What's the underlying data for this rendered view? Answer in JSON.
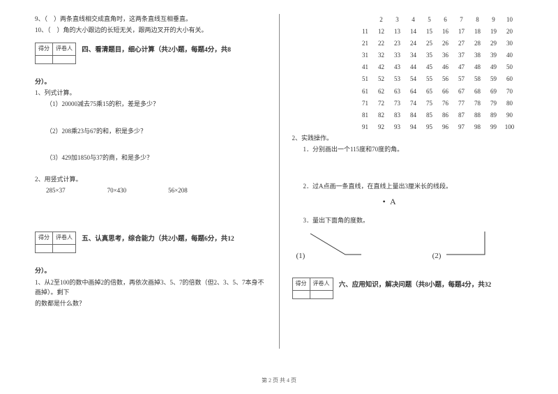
{
  "leftTop": {
    "q9": "9、（　）两条直线相交成直角时，这两条直线互相垂直。",
    "q10": "10、（　）角的大小跟边的长短无关，跟两边叉开的大小有关。"
  },
  "score": {
    "h1": "得分",
    "h2": "评卷人"
  },
  "section4": {
    "title": "四、看清题目，细心计算（共2小题，每题4分，共8",
    "titleSuffix": "分）。",
    "p1": "1、列式计算。",
    "p1a": "（1）20000减去75乘15的积，差是多少？",
    "p1b": "（2）208乘23与67的和，积是多少？",
    "p1c": "（3）429加1850与37的商，和是多少？",
    "p2": "2、用竖式计算。",
    "c1": "285×37",
    "c2": "70×430",
    "c3": "56×208"
  },
  "section5": {
    "title": "五、认真思考，综合能力（共2小题，每题6分，共12",
    "titleSuffix": "分）。",
    "p1a": "1、从2至100的数中画掉2的倍数，再依次画掉3、5、7的倍数（但2、3、5、7本身不画掉）。剩下",
    "p1b": "的数都是什么数？"
  },
  "numbers": [
    [
      2,
      3,
      4,
      5,
      6,
      7,
      8,
      9,
      10
    ],
    [
      11,
      12,
      13,
      14,
      15,
      16,
      17,
      18,
      19,
      20
    ],
    [
      21,
      22,
      23,
      24,
      25,
      26,
      27,
      28,
      29,
      30
    ],
    [
      31,
      32,
      33,
      34,
      35,
      36,
      37,
      38,
      39,
      40
    ],
    [
      41,
      42,
      43,
      44,
      45,
      46,
      47,
      48,
      49,
      50
    ],
    [
      51,
      52,
      53,
      54,
      55,
      56,
      57,
      58,
      59,
      60
    ],
    [
      61,
      62,
      63,
      64,
      65,
      66,
      67,
      68,
      69,
      70
    ],
    [
      71,
      72,
      73,
      74,
      75,
      76,
      77,
      78,
      79,
      80
    ],
    [
      81,
      82,
      83,
      84,
      85,
      86,
      87,
      88,
      89,
      90
    ],
    [
      91,
      92,
      93,
      94,
      95,
      96,
      97,
      98,
      99,
      100
    ]
  ],
  "practice": {
    "h": "2、实践操作。",
    "p1": "1．分别画出一个115度和70度的角。",
    "p2": "2．过A点画一条直线，在直线上量出3厘米长的线段。",
    "pointA": "• A",
    "p3": "3．量出下面角的度数。",
    "a1": "(1)",
    "a2": "(2)"
  },
  "section6": {
    "title": "六、应用知识，解决问题（共8小题，每题4分，共32"
  },
  "footer": "第 2 页 共 4 页",
  "angleSvg": {
    "stroke": "#333",
    "strokeWidth": "1",
    "a1_w": 80,
    "a1_h": 40,
    "a2_w": 70,
    "a2_h": 40
  }
}
